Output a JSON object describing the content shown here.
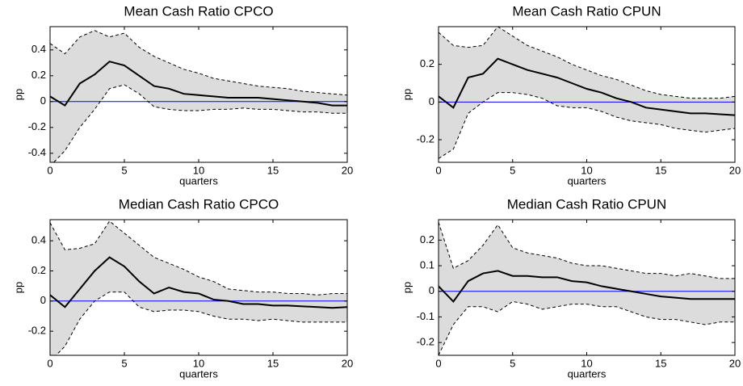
{
  "chart_data": [
    {
      "type": "line",
      "title": "Mean Cash Ratio CPCO",
      "xlabel": "quarters",
      "ylabel": "pp",
      "x": [
        0,
        1,
        2,
        3,
        4,
        5,
        6,
        7,
        8,
        9,
        10,
        11,
        12,
        13,
        14,
        15,
        16,
        17,
        18,
        19,
        20
      ],
      "values": [
        0.04,
        -0.03,
        0.14,
        0.21,
        0.31,
        0.28,
        0.2,
        0.12,
        0.1,
        0.06,
        0.05,
        0.04,
        0.03,
        0.03,
        0.03,
        0.02,
        0.01,
        0.0,
        -0.01,
        -0.03,
        -0.03
      ],
      "upper": [
        0.45,
        0.37,
        0.5,
        0.55,
        0.5,
        0.53,
        0.42,
        0.35,
        0.3,
        0.25,
        0.22,
        0.18,
        0.16,
        0.14,
        0.12,
        0.11,
        0.1,
        0.08,
        0.07,
        0.06,
        0.05
      ],
      "lower": [
        -0.5,
        -0.38,
        -0.2,
        -0.06,
        0.1,
        0.13,
        0.06,
        -0.04,
        -0.06,
        -0.07,
        -0.07,
        -0.06,
        -0.06,
        -0.05,
        -0.06,
        -0.06,
        -0.07,
        -0.08,
        -0.08,
        -0.09,
        -0.09
      ],
      "color": "#000000",
      "band_color": "#dcdcdc",
      "zero_line_color": "#0000ff",
      "xlim": [
        0,
        20
      ],
      "xticks": [
        0,
        5,
        10,
        15,
        20
      ],
      "ylim": [
        -0.47,
        0.58
      ],
      "yticks": [
        -0.4,
        -0.2,
        0,
        0.2,
        0.4
      ]
    },
    {
      "type": "line",
      "title": "Mean Cash Ratio CPUN",
      "xlabel": "quarters",
      "ylabel": "pp",
      "x": [
        0,
        1,
        2,
        3,
        4,
        5,
        6,
        7,
        8,
        9,
        10,
        11,
        12,
        13,
        14,
        15,
        16,
        17,
        18,
        19,
        20
      ],
      "values": [
        0.03,
        -0.03,
        0.13,
        0.15,
        0.23,
        0.2,
        0.17,
        0.15,
        0.13,
        0.1,
        0.07,
        0.05,
        0.02,
        0.0,
        -0.03,
        -0.04,
        -0.05,
        -0.06,
        -0.06,
        -0.065,
        -0.07
      ],
      "upper": [
        0.37,
        0.3,
        0.29,
        0.3,
        0.4,
        0.35,
        0.3,
        0.27,
        0.24,
        0.2,
        0.17,
        0.14,
        0.12,
        0.09,
        0.06,
        0.04,
        0.03,
        0.02,
        0.02,
        0.02,
        0.03
      ],
      "lower": [
        -0.3,
        -0.25,
        -0.06,
        0.0,
        0.05,
        0.05,
        0.04,
        0.02,
        -0.02,
        -0.03,
        -0.03,
        -0.05,
        -0.08,
        -0.1,
        -0.11,
        -0.12,
        -0.14,
        -0.15,
        -0.16,
        -0.15,
        -0.14
      ],
      "color": "#000000",
      "band_color": "#dcdcdc",
      "zero_line_color": "#0000ff",
      "xlim": [
        0,
        20
      ],
      "xticks": [
        0,
        5,
        10,
        15,
        20
      ],
      "ylim": [
        -0.32,
        0.4
      ],
      "yticks": [
        -0.2,
        0,
        0.2
      ]
    },
    {
      "type": "line",
      "title": "Median Cash Ratio CPCO",
      "xlabel": "quarters",
      "ylabel": "pp",
      "x": [
        0,
        1,
        2,
        3,
        4,
        5,
        6,
        7,
        8,
        9,
        10,
        11,
        12,
        13,
        14,
        15,
        16,
        17,
        18,
        19,
        20
      ],
      "values": [
        0.04,
        -0.04,
        0.08,
        0.2,
        0.29,
        0.23,
        0.13,
        0.05,
        0.09,
        0.06,
        0.05,
        0.01,
        0.0,
        -0.02,
        -0.02,
        -0.03,
        -0.03,
        -0.035,
        -0.04,
        -0.045,
        -0.04
      ],
      "upper": [
        0.52,
        0.34,
        0.35,
        0.38,
        0.53,
        0.45,
        0.37,
        0.29,
        0.25,
        0.21,
        0.16,
        0.13,
        0.08,
        0.07,
        0.06,
        0.06,
        0.05,
        0.05,
        0.04,
        0.05,
        0.05
      ],
      "lower": [
        -0.4,
        -0.3,
        -0.12,
        0.0,
        0.06,
        0.06,
        -0.04,
        -0.07,
        -0.06,
        -0.06,
        -0.07,
        -0.1,
        -0.12,
        -0.12,
        -0.13,
        -0.12,
        -0.13,
        -0.14,
        -0.14,
        -0.14,
        -0.14
      ],
      "color": "#000000",
      "band_color": "#dcdcdc",
      "zero_line_color": "#0000ff",
      "xlim": [
        0,
        20
      ],
      "xticks": [
        0,
        5,
        10,
        15,
        20
      ],
      "ylim": [
        -0.36,
        0.54
      ],
      "yticks": [
        -0.2,
        0,
        0.2,
        0.4
      ]
    },
    {
      "type": "line",
      "title": "Median Cash Ratio CPUN",
      "xlabel": "quarters",
      "ylabel": "pp",
      "x": [
        0,
        1,
        2,
        3,
        4,
        5,
        6,
        7,
        8,
        9,
        10,
        11,
        12,
        13,
        14,
        15,
        16,
        17,
        18,
        19,
        20
      ],
      "values": [
        0.02,
        -0.04,
        0.04,
        0.07,
        0.08,
        0.06,
        0.06,
        0.055,
        0.055,
        0.04,
        0.035,
        0.02,
        0.01,
        0.0,
        -0.01,
        -0.02,
        -0.025,
        -0.03,
        -0.03,
        -0.03,
        -0.03
      ],
      "upper": [
        0.27,
        0.09,
        0.12,
        0.18,
        0.26,
        0.17,
        0.15,
        0.14,
        0.13,
        0.11,
        0.1,
        0.1,
        0.09,
        0.08,
        0.07,
        0.07,
        0.06,
        0.07,
        0.06,
        0.05,
        0.05
      ],
      "lower": [
        -0.25,
        -0.13,
        -0.06,
        -0.06,
        -0.08,
        -0.04,
        -0.05,
        -0.07,
        -0.06,
        -0.05,
        -0.05,
        -0.06,
        -0.06,
        -0.08,
        -0.1,
        -0.11,
        -0.11,
        -0.12,
        -0.13,
        -0.12,
        -0.12
      ],
      "color": "#000000",
      "band_color": "#dcdcdc",
      "zero_line_color": "#0000ff",
      "xlim": [
        0,
        20
      ],
      "xticks": [
        0,
        5,
        10,
        15,
        20
      ],
      "ylim": [
        -0.25,
        0.28
      ],
      "yticks": [
        -0.2,
        -0.1,
        0,
        0.1,
        0.2
      ]
    }
  ]
}
